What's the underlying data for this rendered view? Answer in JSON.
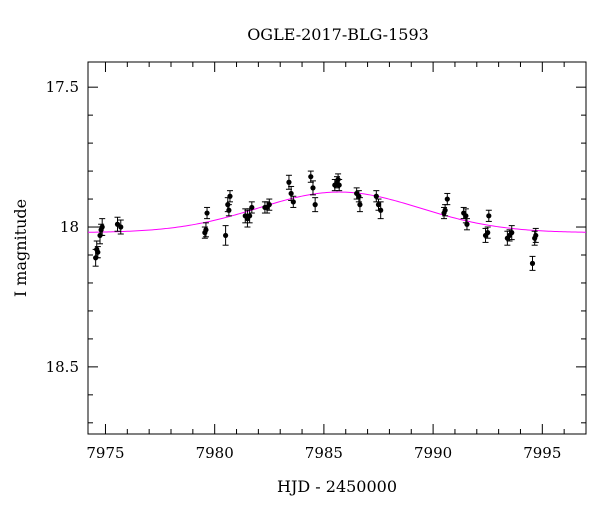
{
  "chart_data": {
    "type": "scatter",
    "title": "OGLE-2017-BLG-1593",
    "xlabel": "HJD - 2450000",
    "ylabel": "I magnitude",
    "xlim": [
      7974.2,
      7997.0
    ],
    "ylim": [
      18.74,
      17.41
    ],
    "y_inverted": true,
    "x_ticks": [
      7975,
      7980,
      7985,
      7990,
      7995
    ],
    "x_tick_labels": [
      "7975",
      "7980",
      "7985",
      "7990",
      "7995"
    ],
    "y_ticks": [
      17.5,
      18,
      18.5
    ],
    "y_tick_labels": [
      "17.5",
      "18",
      "18.5"
    ],
    "grid": false,
    "colors": {
      "points": "#000000",
      "model": "#ff00ff"
    },
    "series": [
      {
        "kind": "points_with_errorbars",
        "x": [
          7974.55,
          7974.6,
          7974.65,
          7974.75,
          7974.8,
          7974.85,
          7975.55,
          7975.7,
          7979.55,
          7979.6,
          7979.65,
          7980.5,
          7980.6,
          7980.65,
          7980.7,
          7981.4,
          7981.5,
          7981.6,
          7981.7,
          7982.3,
          7982.4,
          7982.5,
          7983.4,
          7983.5,
          7983.6,
          7984.4,
          7984.5,
          7984.6,
          7985.5,
          7985.6,
          7985.65,
          7985.7,
          7986.5,
          7986.6,
          7986.65,
          7987.4,
          7987.5,
          7987.6,
          7990.5,
          7990.55,
          7990.65,
          7991.4,
          7991.5,
          7991.55,
          7992.4,
          7992.5,
          7992.55,
          7993.4,
          7993.5,
          7993.6,
          7994.55,
          7994.65,
          7994.7
        ],
        "y": [
          18.11,
          18.08,
          18.09,
          18.03,
          18.01,
          18.0,
          17.99,
          18.0,
          18.02,
          18.01,
          17.95,
          18.03,
          17.92,
          17.94,
          17.89,
          17.96,
          17.97,
          17.96,
          17.93,
          17.93,
          17.93,
          17.92,
          17.84,
          17.88,
          17.91,
          17.82,
          17.86,
          17.92,
          17.85,
          17.84,
          17.83,
          17.85,
          17.88,
          17.89,
          17.92,
          17.89,
          17.92,
          17.94,
          17.95,
          17.94,
          17.9,
          17.95,
          17.96,
          17.99,
          18.03,
          18.02,
          17.96,
          18.04,
          18.03,
          18.02,
          18.13,
          18.04,
          18.03
        ],
        "yerr": [
          0.03,
          0.03,
          0.02,
          0.03,
          0.02,
          0.03,
          0.025,
          0.025,
          0.02,
          0.025,
          0.02,
          0.035,
          0.025,
          0.02,
          0.02,
          0.025,
          0.03,
          0.025,
          0.02,
          0.02,
          0.02,
          0.02,
          0.025,
          0.025,
          0.02,
          0.02,
          0.025,
          0.025,
          0.02,
          0.02,
          0.02,
          0.02,
          0.02,
          0.02,
          0.025,
          0.02,
          0.02,
          0.03,
          0.02,
          0.02,
          0.02,
          0.02,
          0.025,
          0.02,
          0.025,
          0.02,
          0.02,
          0.025,
          0.02,
          0.025,
          0.025,
          0.025,
          0.025
        ]
      },
      {
        "kind": "model_curve",
        "baseline": 18.02,
        "peak": 17.875,
        "t0": 7985.7,
        "sigma": 3.7
      }
    ]
  }
}
